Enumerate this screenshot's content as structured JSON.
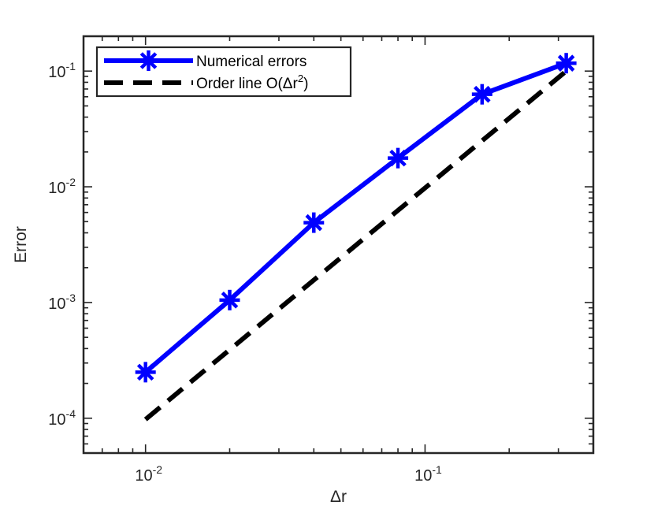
{
  "chart_data": {
    "type": "line",
    "xscale": "log",
    "yscale": "log",
    "xlim": [
      0.006,
      0.4
    ],
    "ylim": [
      5e-05,
      0.2
    ],
    "xlabel": "Δr",
    "ylabel": "Error",
    "x_ticks": [
      {
        "value": 0.01,
        "base": "10",
        "exp": "-2"
      },
      {
        "value": 0.1,
        "base": "10",
        "exp": "-1"
      }
    ],
    "y_ticks": [
      {
        "value": 0.0001,
        "base": "10",
        "exp": "-4"
      },
      {
        "value": 0.001,
        "base": "10",
        "exp": "-3"
      },
      {
        "value": 0.01,
        "base": "10",
        "exp": "-2"
      },
      {
        "value": 0.1,
        "base": "10",
        "exp": "-1"
      }
    ],
    "grid": false,
    "legend_position": "top-left",
    "series": [
      {
        "name": "Numerical errors",
        "color": "#0000ff",
        "style": "solid",
        "marker": "asterisk",
        "x": [
          0.01,
          0.02,
          0.04,
          0.08,
          0.16,
          0.32
        ],
        "y": [
          0.00025,
          0.00105,
          0.0049,
          0.0177,
          0.063,
          0.117
        ]
      },
      {
        "name": "Order line O(Δr",
        "name_superscript": "2",
        "name_suffix": ")",
        "color": "#000000",
        "style": "dashed",
        "marker": "none",
        "x": [
          0.01,
          0.32
        ],
        "y": [
          9.77e-05,
          0.1
        ]
      }
    ]
  }
}
